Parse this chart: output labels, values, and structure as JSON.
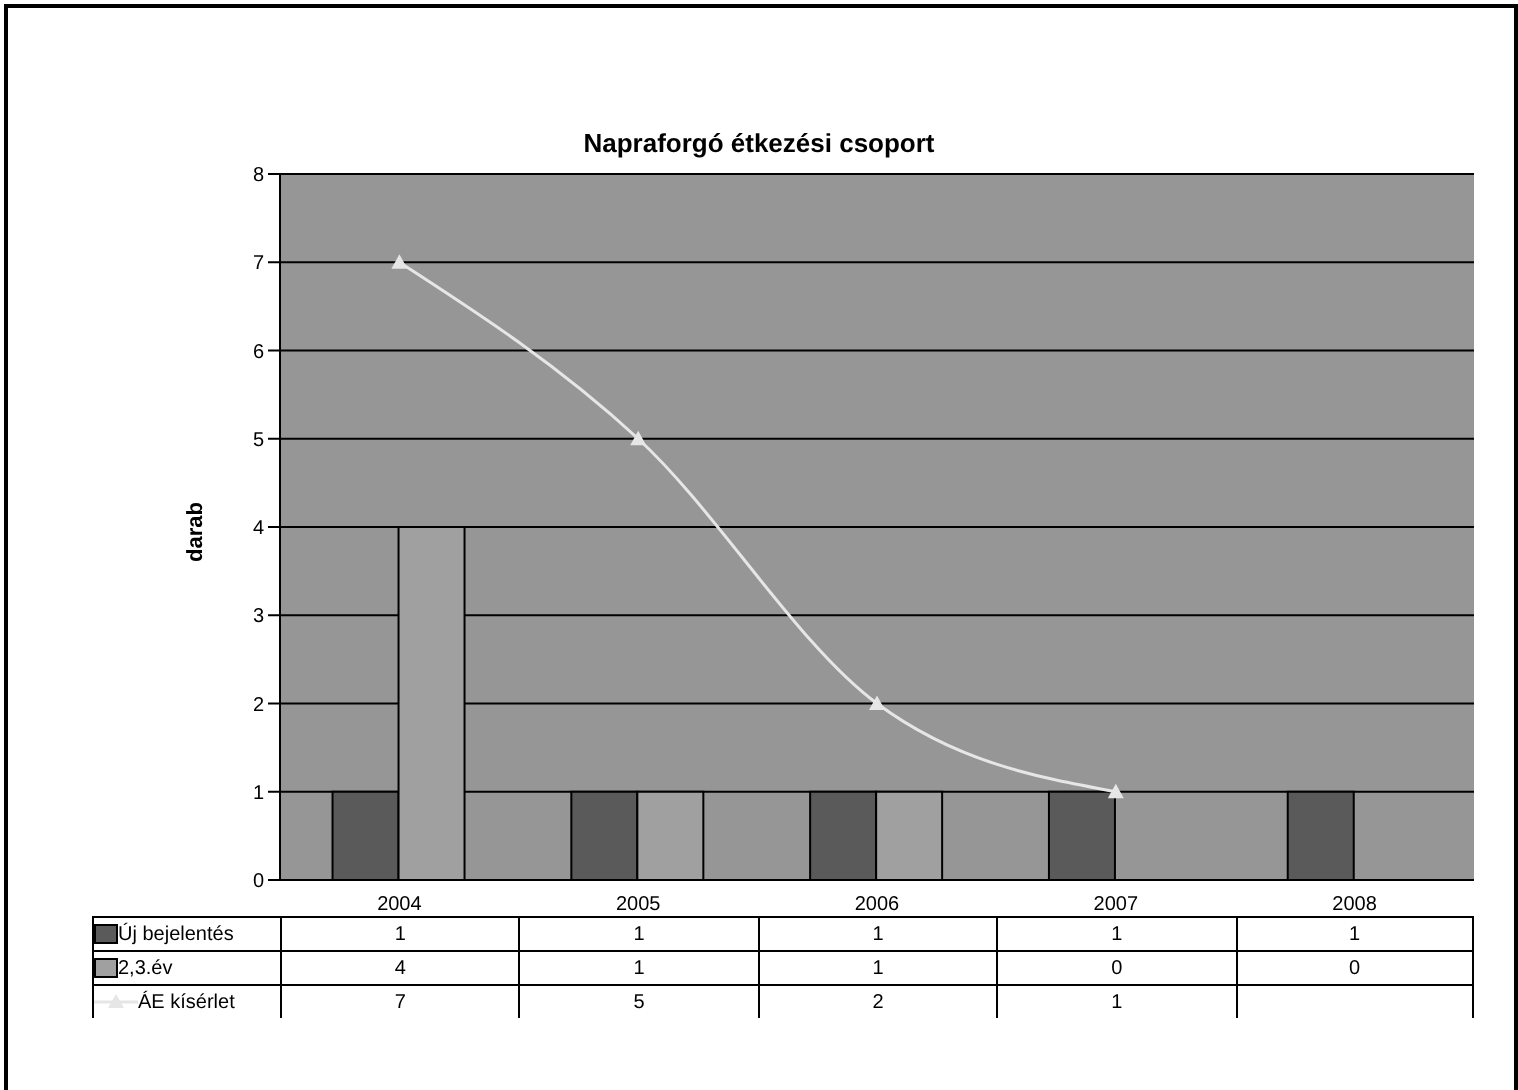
{
  "chart_data": {
    "type": "bar",
    "title": "Napraforgó étkezési csoport",
    "ylabel": "darab",
    "categories": [
      "2004",
      "2005",
      "2006",
      "2007",
      "2008"
    ],
    "series": [
      {
        "name": "Új bejelentés",
        "color": "#5a5a5a",
        "values": [
          1,
          1,
          1,
          1,
          1
        ]
      },
      {
        "name": "2,3.év",
        "color": "#a0a0a0",
        "values": [
          4,
          1,
          1,
          0,
          0
        ]
      },
      {
        "name": "ÁE kísérlet",
        "type": "line",
        "color": "#e6e6e6",
        "marker": "triangle",
        "values": [
          7,
          5,
          2,
          1,
          null
        ]
      }
    ],
    "ylim": [
      0,
      8
    ],
    "yticks": [
      0,
      1,
      2,
      3,
      4,
      5,
      6,
      7,
      8
    ],
    "grid": "y",
    "legend": "bottom",
    "data_labels": true
  }
}
